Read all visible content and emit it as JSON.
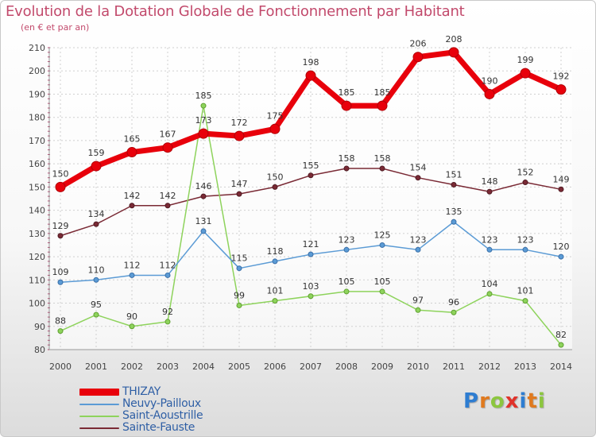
{
  "chart_data": {
    "type": "line",
    "title": "Evolution de la Dotation Globale de Fonctionnement par Habitant",
    "subtitle": "(en € et par an)",
    "xlabel": "",
    "ylabel": "",
    "x": [
      "2000",
      "2001",
      "2002",
      "2003",
      "2004",
      "2005",
      "2006",
      "2007",
      "2008",
      "2009",
      "2010",
      "2011",
      "2012",
      "2013",
      "2014"
    ],
    "ylim": [
      80,
      210
    ],
    "yticks": [
      "80",
      "90",
      "100",
      "110",
      "120",
      "130",
      "140",
      "150",
      "160",
      "170",
      "180",
      "190",
      "200",
      "210"
    ],
    "grid": true,
    "legend_position": "bottom-left",
    "series": [
      {
        "name": "THIZAY",
        "color": "#e8000b",
        "values": [
          150,
          159,
          165,
          167,
          173,
          172,
          175,
          198,
          185,
          185,
          206,
          208,
          190,
          199,
          192
        ],
        "labels": [
          "150",
          "159",
          "165",
          "167",
          "173",
          "172",
          "175",
          "198",
          "185",
          "185",
          "206",
          "208",
          "190",
          "199",
          "192"
        ]
      },
      {
        "name": "Neuvy-Pailloux",
        "color": "#5b9bd5",
        "values": [
          109,
          110,
          112,
          112,
          131,
          115,
          118,
          121,
          123,
          125,
          123,
          135,
          123,
          123,
          120
        ],
        "labels": [
          "109",
          "110",
          "112",
          "112",
          "131",
          "115",
          "118",
          "121",
          "123",
          "125",
          "123",
          "135",
          "123",
          "123",
          "120"
        ]
      },
      {
        "name": "Saint-Aoustrille",
        "color": "#8ed35c",
        "values": [
          88,
          95,
          90,
          92,
          185,
          99,
          101,
          103,
          105,
          105,
          97,
          96,
          104,
          101,
          82
        ],
        "labels": [
          "88",
          "95",
          "90",
          "92",
          "185",
          "99",
          "101",
          "103",
          "105",
          "105",
          "97",
          "96",
          "104",
          "101",
          "82"
        ]
      },
      {
        "name": "Sainte-Fauste",
        "color": "#7a2a35",
        "values": [
          129,
          134,
          142,
          142,
          146,
          147,
          150,
          155,
          158,
          158,
          154,
          151,
          148,
          152,
          149
        ],
        "labels": [
          "129",
          "134",
          "142",
          "142",
          "146",
          "147",
          "150",
          "155",
          "158",
          "158",
          "154",
          "151",
          "148",
          "152",
          "149"
        ]
      }
    ]
  },
  "legend": {
    "items": [
      {
        "label": "THIZAY",
        "color": "#e8000b"
      },
      {
        "label": "Neuvy-Pailloux",
        "color": "#5b9bd5"
      },
      {
        "label": "Saint-Aoustrille",
        "color": "#8ed35c"
      },
      {
        "label": "Sainte-Fauste",
        "color": "#7a2a35"
      }
    ]
  },
  "logo": {
    "letters": [
      "P",
      "r",
      "o",
      "x",
      "i",
      "t",
      "i"
    ],
    "colors": [
      "#2e7dd1",
      "#e07a1f",
      "#8cc63f",
      "#e0332b",
      "#2e7dd1",
      "#e07a1f",
      "#8cc63f"
    ]
  }
}
